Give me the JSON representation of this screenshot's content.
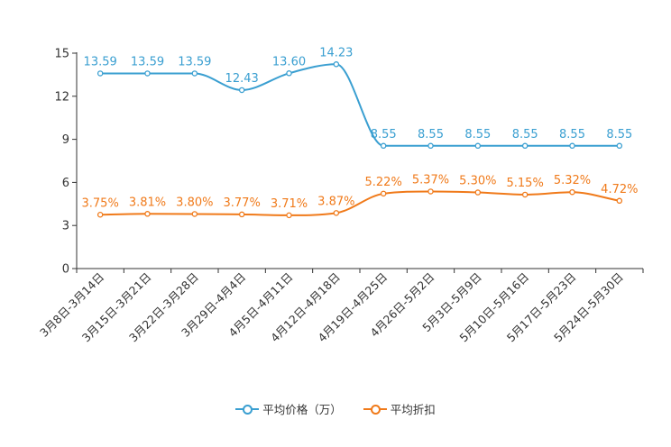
{
  "chart_data": {
    "type": "line",
    "categories": [
      "3月8日-3月14日",
      "3月15日-3月21日",
      "3月22日-3月28日",
      "3月29日-4月4日",
      "4月5日-4月11日",
      "4月12日-4月18日",
      "4月19日-4月25日",
      "4月26日-5月2日",
      "5月3日-5月9日",
      "5月10日-5月16日",
      "5月17日-5月23日",
      "5月24日-5月30日"
    ],
    "ylim": [
      0,
      15
    ],
    "yticks": [
      0,
      3,
      6,
      9,
      12,
      15
    ],
    "series": [
      {
        "name": "平均价格（万）",
        "color": "#3a9fd1",
        "values": [
          13.59,
          13.59,
          13.59,
          12.43,
          13.6,
          14.23,
          8.55,
          8.55,
          8.55,
          8.55,
          8.55,
          8.55
        ],
        "labels": [
          "13.59",
          "13.59",
          "13.59",
          "12.43",
          "13.60",
          "14.23",
          "8.55",
          "8.55",
          "8.55",
          "8.55",
          "8.55",
          "8.55"
        ]
      },
      {
        "name": "平均折扣",
        "color": "#f07a1a",
        "values": [
          3.75,
          3.81,
          3.8,
          3.77,
          3.71,
          3.87,
          5.22,
          5.37,
          5.3,
          5.15,
          5.32,
          4.72
        ],
        "labels": [
          "3.75%",
          "3.81%",
          "3.80%",
          "3.77%",
          "3.71%",
          "3.87%",
          "5.22%",
          "5.37%",
          "5.30%",
          "5.15%",
          "5.32%",
          "4.72%"
        ]
      }
    ],
    "legend_position": "bottom-center"
  }
}
